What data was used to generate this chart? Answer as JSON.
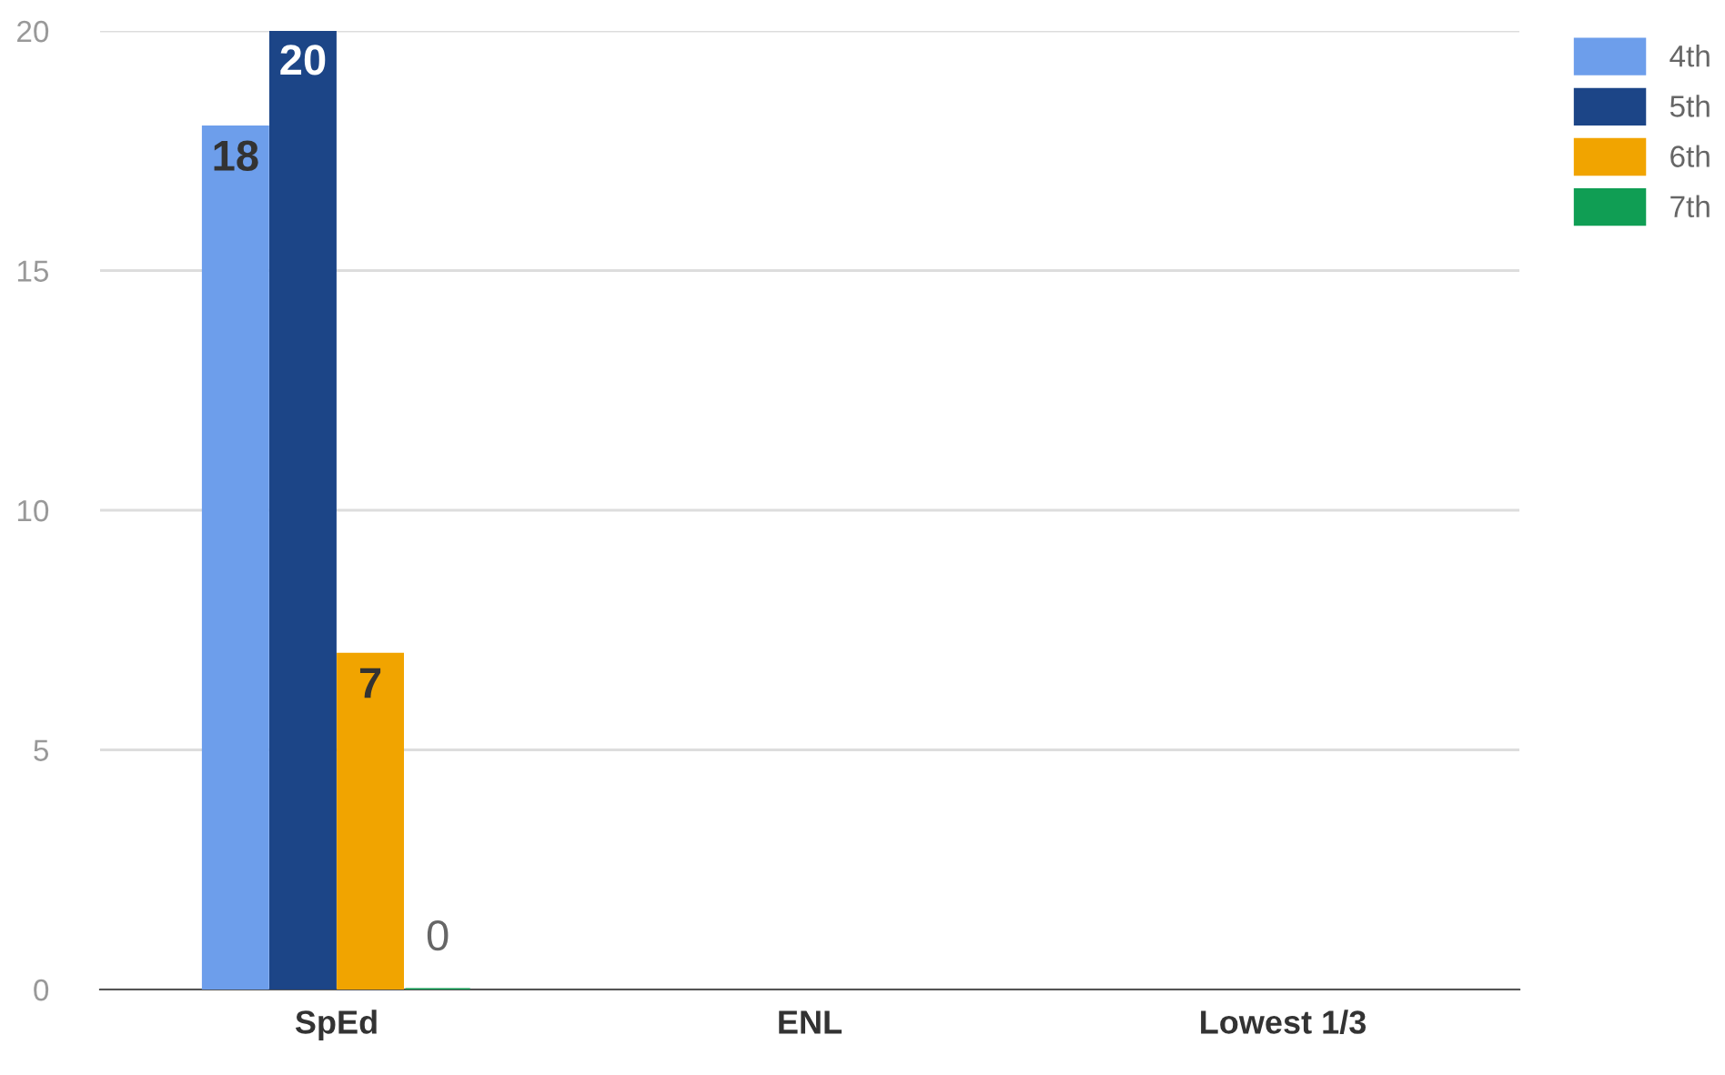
{
  "chart_data": {
    "type": "bar",
    "categories": [
      "SpEd",
      "ENL",
      "Lowest 1/3"
    ],
    "series": [
      {
        "name": "4th",
        "color": "#6d9eeb",
        "values": [
          18,
          null,
          null
        ]
      },
      {
        "name": "5th",
        "color": "#1c4587",
        "values": [
          20,
          null,
          null
        ]
      },
      {
        "name": "6th",
        "color": "#f1a400",
        "values": [
          7,
          null,
          null
        ]
      },
      {
        "name": "7th",
        "color": "#109e54",
        "values": [
          0,
          null,
          null
        ]
      }
    ],
    "ylim": [
      0,
      20
    ],
    "yticks": [
      0,
      5,
      10,
      15,
      20
    ],
    "grid": "y",
    "legend": "top right",
    "data_labels": true
  }
}
